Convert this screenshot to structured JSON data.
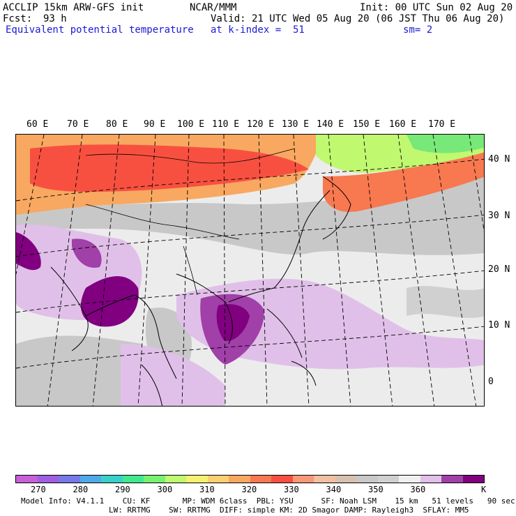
{
  "header": {
    "model": "ACCLIP 15km ARW-GFS init",
    "org": "NCAR/MMM",
    "init": "Init: 00 UTC Sun 02 Aug 20",
    "fcst_label": "Fcst:",
    "fcst_value": "93 h",
    "valid": "Valid: 21 UTC Wed 05 Aug 20 (06 JST Thu 06 Aug 20)",
    "field": "Equivalent potential temperature",
    "level": "at k-index =  51",
    "smoothing": "sm= 2"
  },
  "map": {
    "lon_labels": [
      "60 E",
      "70 E",
      "80 E",
      "90 E",
      "100 E",
      "110 E",
      "120 E",
      "130 E",
      "140 E",
      "150 E",
      "160 E",
      "170 E"
    ],
    "lat_labels": [
      "40 N",
      "30 N",
      "20 N",
      "10 N",
      "0"
    ]
  },
  "colorbar": {
    "unit": "K",
    "ticks": [
      "270",
      "280",
      "290",
      "300",
      "310",
      "320",
      "330",
      "340",
      "350",
      "360"
    ],
    "colors": [
      "#c85fd8",
      "#9f5fe0",
      "#7878e8",
      "#4fa8e8",
      "#38d0c8",
      "#40e890",
      "#78f070",
      "#c0f870",
      "#f8f070",
      "#f8d070",
      "#f8a860",
      "#f87850",
      "#f85040",
      "#f89878",
      "#f0c0a0",
      "#d8c0b0",
      "#c8c8c8",
      "#d0d0d0",
      "#f0f0f0",
      "#e0c0e8",
      "#a040a8",
      "#800080"
    ]
  },
  "footer": {
    "line1": "Model Info: V4.1.1    CU: KF       MP: WDM 6class  PBL: YSU      SF: Noah LSM    15 km   51 levels   90 sec",
    "line2": "LW: RRTMG    SW: RRTMG  DIFF: simple KM: 2D Smagor DAMP: Rayleigh3  SFLAY: MM5"
  },
  "colors": {
    "bg_light": "#ececec",
    "gray": "#c8c8c8",
    "warm": "#f8a860",
    "hot": "#f85040",
    "lavender": "#e0c0e8",
    "violet": "#a040a8",
    "purple": "#800080",
    "green": "#78e878"
  }
}
